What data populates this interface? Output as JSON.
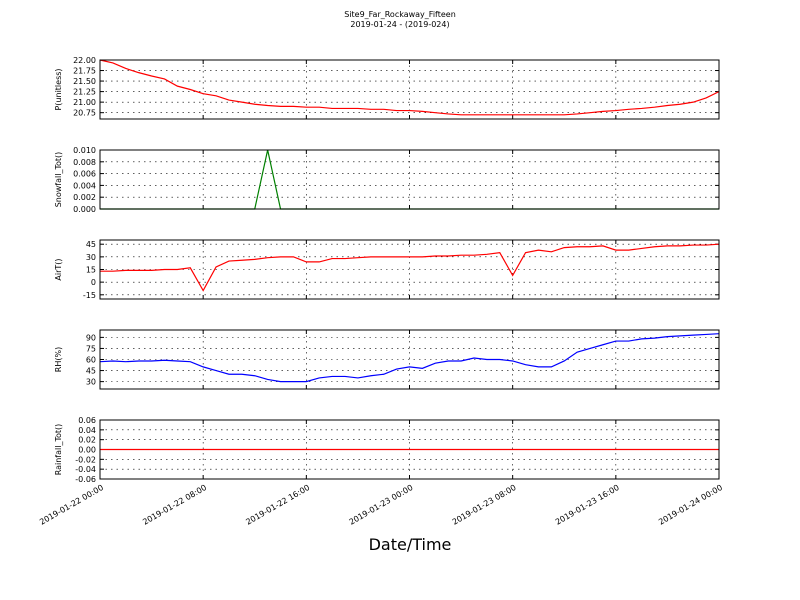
{
  "title": "Site9_Far_Rockaway_Fifteen",
  "subtitle": "2019-01-24 - (2019-024)",
  "xlabel": "Date/Time",
  "xlim": [
    "2019-01-22 00:00",
    "2019-01-24 00:00"
  ],
  "xticks": [
    "2019-01-22 00:00",
    "2019-01-22 08:00",
    "2019-01-22 16:00",
    "2019-01-23 00:00",
    "2019-01-23 08:00",
    "2019-01-23 16:00",
    "2019-01-24 00:00"
  ],
  "grid": true,
  "x": [
    "2019-01-22 00:00",
    "2019-01-22 01:00",
    "2019-01-22 02:00",
    "2019-01-22 03:00",
    "2019-01-22 04:00",
    "2019-01-22 05:00",
    "2019-01-22 06:00",
    "2019-01-22 07:00",
    "2019-01-22 08:00",
    "2019-01-22 09:00",
    "2019-01-22 10:00",
    "2019-01-22 11:00",
    "2019-01-22 12:00",
    "2019-01-22 13:00",
    "2019-01-22 14:00",
    "2019-01-22 15:00",
    "2019-01-22 16:00",
    "2019-01-22 17:00",
    "2019-01-22 18:00",
    "2019-01-22 19:00",
    "2019-01-22 20:00",
    "2019-01-22 21:00",
    "2019-01-22 22:00",
    "2019-01-22 23:00",
    "2019-01-23 00:00",
    "2019-01-23 01:00",
    "2019-01-23 02:00",
    "2019-01-23 03:00",
    "2019-01-23 04:00",
    "2019-01-23 05:00",
    "2019-01-23 06:00",
    "2019-01-23 07:00",
    "2019-01-23 08:00",
    "2019-01-23 09:00",
    "2019-01-23 10:00",
    "2019-01-23 11:00",
    "2019-01-23 12:00",
    "2019-01-23 13:00",
    "2019-01-23 14:00",
    "2019-01-23 15:00",
    "2019-01-23 16:00",
    "2019-01-23 17:00",
    "2019-01-23 18:00",
    "2019-01-23 19:00",
    "2019-01-23 20:00",
    "2019-01-23 21:00",
    "2019-01-23 22:00",
    "2019-01-23 23:00",
    "2019-01-24 00:00"
  ],
  "chart_data": [
    {
      "type": "line",
      "ylabel": "P(unitless)",
      "color": "#ff0000",
      "ylim": [
        20.6,
        22.0
      ],
      "yticks": [
        {
          "value": 22.0,
          "label": "22.00"
        },
        21.75,
        {
          "value": 21.5,
          "label": "21.50"
        },
        21.25,
        {
          "value": 21.0,
          "label": "21.00"
        },
        20.75
      ],
      "values": [
        22.0,
        21.93,
        21.8,
        21.7,
        21.62,
        21.55,
        21.38,
        21.3,
        21.2,
        21.15,
        21.05,
        21.0,
        20.95,
        20.92,
        20.9,
        20.9,
        20.88,
        20.88,
        20.85,
        20.85,
        20.85,
        20.83,
        20.83,
        20.8,
        20.8,
        20.78,
        20.75,
        20.72,
        20.7,
        20.7,
        20.7,
        20.7,
        20.7,
        20.7,
        20.7,
        20.7,
        20.7,
        20.72,
        20.75,
        20.78,
        20.8,
        20.83,
        20.85,
        20.88,
        20.92,
        20.95,
        21.0,
        21.1,
        21.25
      ]
    },
    {
      "type": "line",
      "ylabel": "Snowfall_Tot()",
      "color": "#008000",
      "ylim": [
        0,
        0.01
      ],
      "yticks": [
        {
          "value": 0.01,
          "label": "0.010"
        },
        0.008,
        0.006,
        0.004,
        0.002,
        {
          "value": 0,
          "label": "0.000"
        }
      ],
      "values": [
        0,
        0,
        0,
        0,
        0,
        0,
        0,
        0,
        0,
        0,
        0,
        0,
        0,
        0.01,
        0,
        0,
        0,
        0,
        0,
        0,
        0,
        0,
        0,
        0,
        0,
        0,
        0,
        0,
        0,
        0,
        0,
        0,
        0,
        0,
        0,
        0,
        0,
        0,
        0,
        0,
        0,
        0,
        0,
        0,
        0,
        0,
        0,
        0,
        0
      ]
    },
    {
      "type": "line",
      "ylabel": "AirT()",
      "color": "#ff0000",
      "ylim": [
        -20,
        50
      ],
      "yticks": [
        45,
        30,
        15,
        0,
        -15
      ],
      "values": [
        13,
        13,
        14,
        14,
        14,
        15,
        15,
        17,
        -10,
        18,
        25,
        26,
        27,
        29,
        30,
        30,
        24,
        24,
        28,
        28,
        29,
        30,
        30,
        30,
        30,
        30,
        31,
        31,
        32,
        32,
        33,
        35,
        8,
        35,
        38,
        36,
        41,
        42,
        42,
        43,
        38,
        38,
        40,
        42,
        43,
        43,
        44,
        44,
        45
      ]
    },
    {
      "type": "line",
      "ylabel": "RH(%)",
      "color": "#0000ff",
      "ylim": [
        20,
        100
      ],
      "yticks": [
        90,
        75,
        60,
        45,
        30
      ],
      "values": [
        57,
        58,
        57,
        58,
        58,
        59,
        58,
        57,
        50,
        45,
        40,
        40,
        38,
        33,
        30,
        30,
        30,
        35,
        37,
        37,
        35,
        38,
        40,
        47,
        50,
        48,
        55,
        58,
        58,
        62,
        60,
        60,
        58,
        53,
        50,
        50,
        58,
        70,
        75,
        80,
        85,
        85,
        88,
        89,
        91,
        92,
        93,
        94,
        95
      ]
    },
    {
      "type": "line",
      "ylabel": "Rainfall_Tot()",
      "color": "#ff0000",
      "ylim": [
        -0.06,
        0.06
      ],
      "yticks": [
        0.06,
        0.04,
        0.02,
        {
          "value": 0,
          "label": "0.00"
        },
        -0.02,
        -0.04,
        -0.06
      ],
      "values": [
        0,
        0,
        0,
        0,
        0,
        0,
        0,
        0,
        0,
        0,
        0,
        0,
        0,
        0,
        0,
        0,
        0,
        0,
        0,
        0,
        0,
        0,
        0,
        0,
        0,
        0,
        0,
        0,
        0,
        0,
        0,
        0,
        0,
        0,
        0,
        0,
        0,
        0,
        0,
        0,
        0,
        0,
        0,
        0,
        0,
        0,
        0,
        0,
        0
      ]
    }
  ]
}
